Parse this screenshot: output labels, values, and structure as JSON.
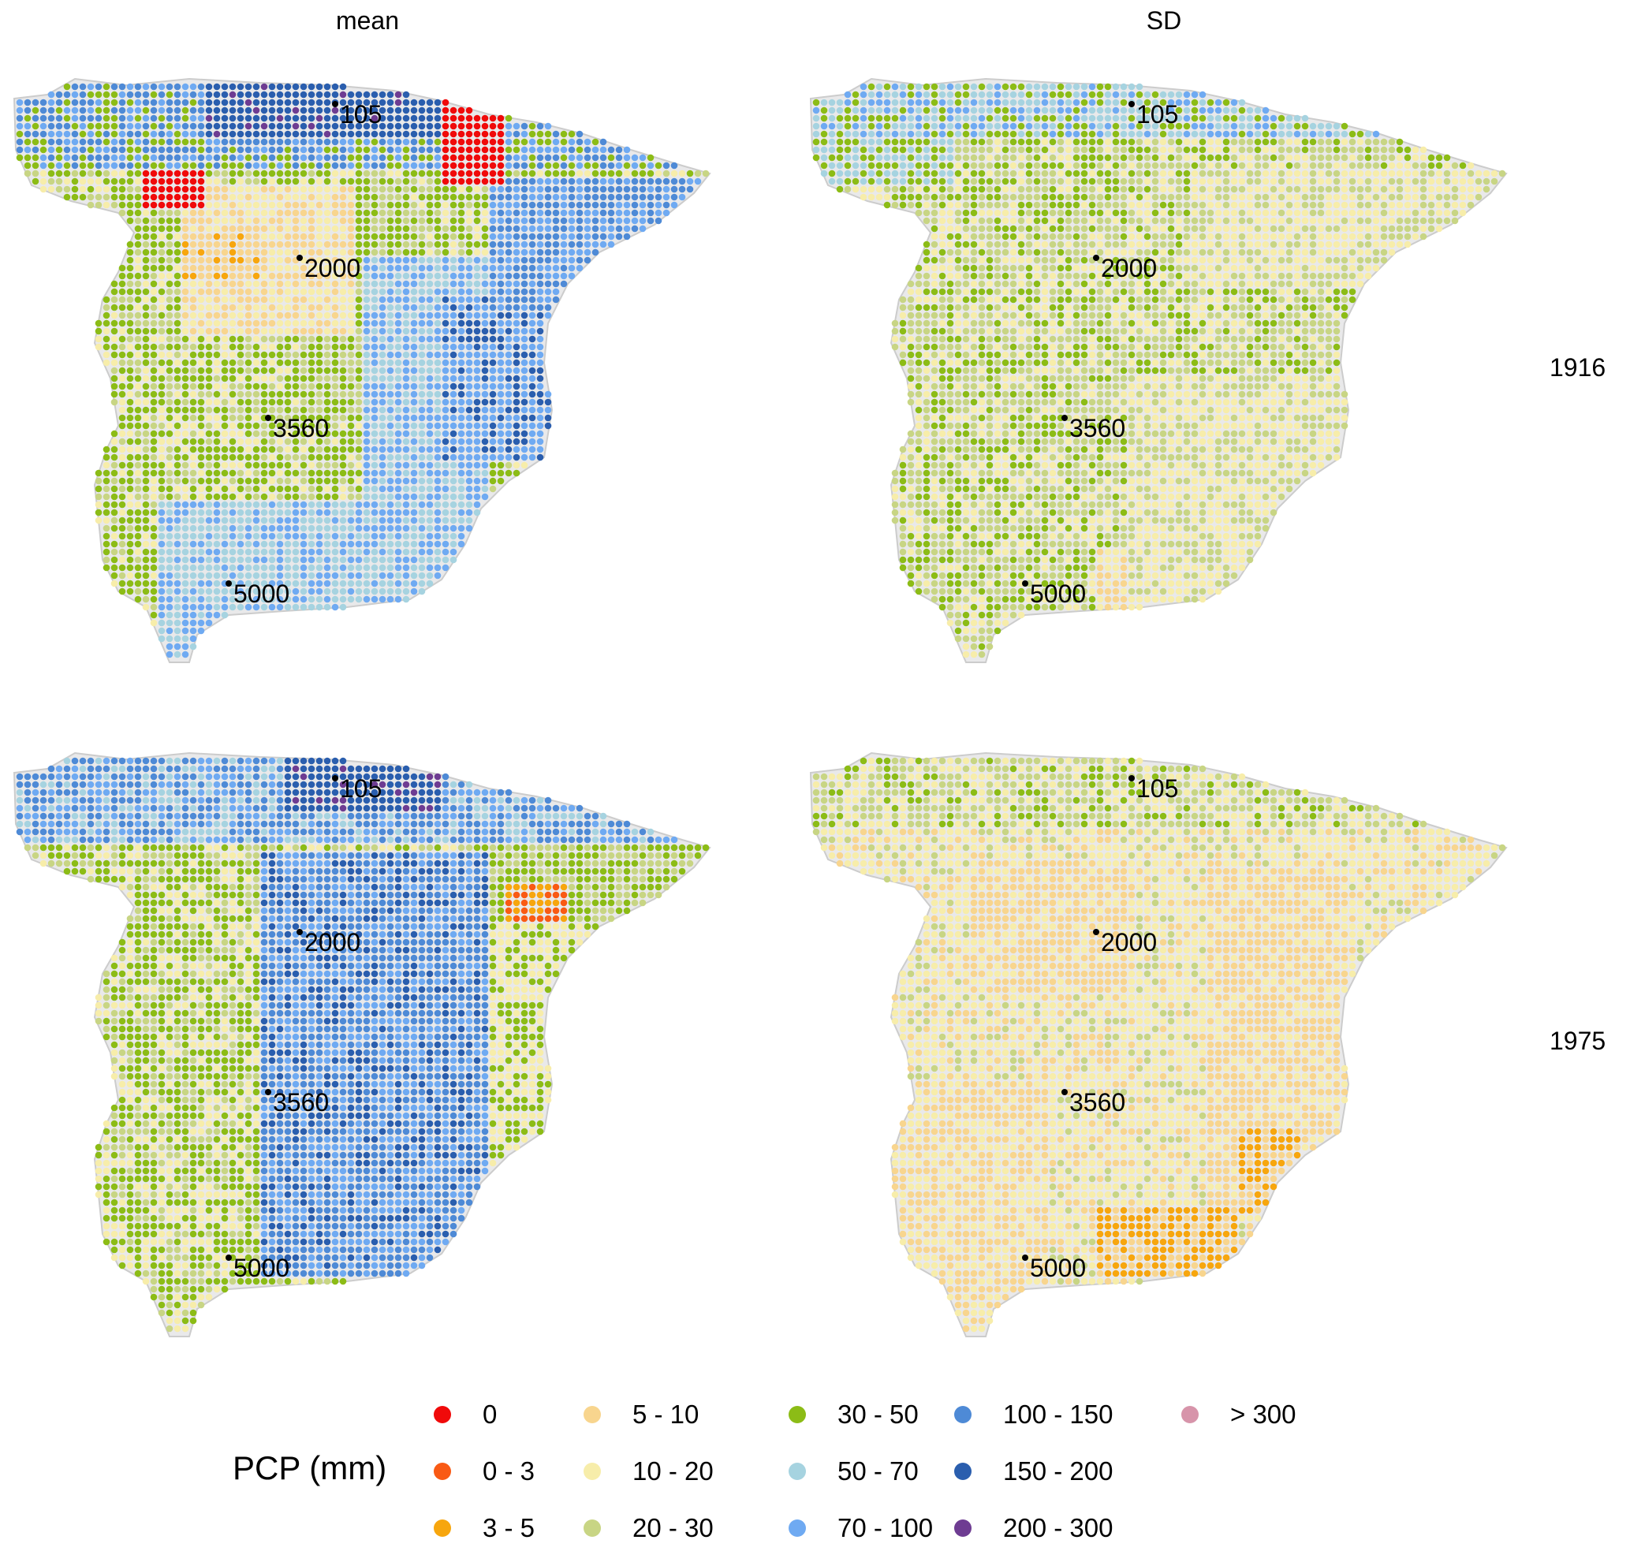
{
  "figure": {
    "columns": [
      "mean",
      "SD"
    ],
    "rows": [
      "1916",
      "1975"
    ]
  },
  "stations": [
    "105",
    "2000",
    "3560",
    "5000"
  ],
  "legend": {
    "title": "PCP (mm)",
    "items": [
      {
        "label": "0",
        "color": "#f00a0a"
      },
      {
        "label": "0 - 3",
        "color": "#f95a14"
      },
      {
        "label": "3 - 5",
        "color": "#f7a60e"
      },
      {
        "label": "5 - 10",
        "color": "#f8d58e"
      },
      {
        "label": "10 - 20",
        "color": "#f7edaa"
      },
      {
        "label": "20 - 30",
        "color": "#c8d584"
      },
      {
        "label": "30 - 50",
        "color": "#8cbc16"
      },
      {
        "label": "50 - 70",
        "color": "#a6d3e0"
      },
      {
        "label": "70 - 100",
        "color": "#6faaf2"
      },
      {
        "label": "100 - 150",
        "color": "#4e8ad6"
      },
      {
        "label": "150 - 200",
        "color": "#2a5eae"
      },
      {
        "label": "200 - 300",
        "color": "#6e3c92"
      },
      {
        "label": "> 300",
        "color": "#d794aa"
      }
    ]
  }
}
